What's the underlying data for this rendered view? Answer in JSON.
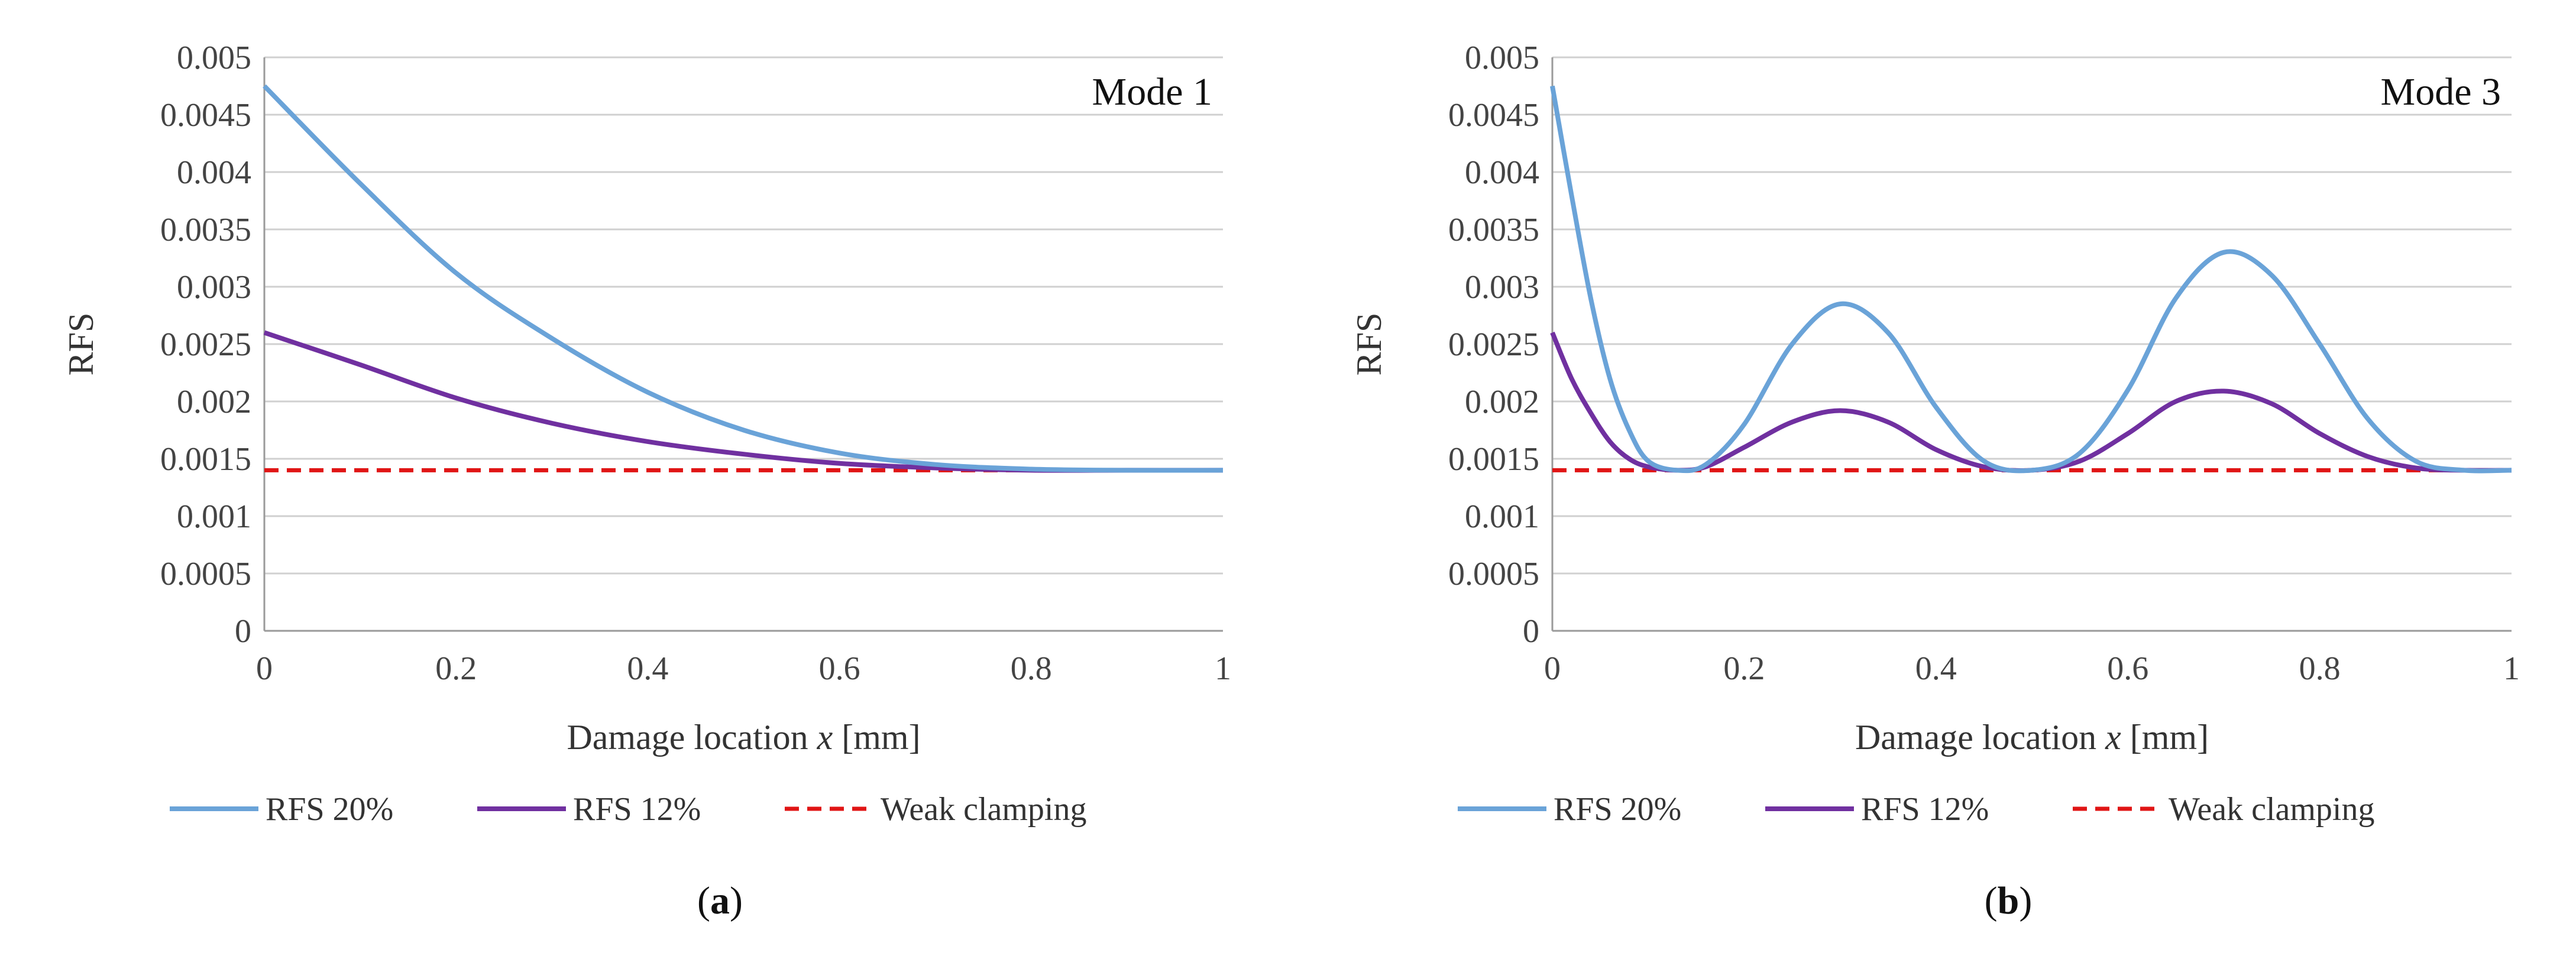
{
  "colors": {
    "rfs20": "#6aa3d8",
    "rfs12": "#7030a0",
    "weak": "#e01515"
  },
  "chart_data": [
    {
      "type": "line",
      "panel_label": "a",
      "annotation": "Mode 1",
      "xlabel_prefix": "Damage location ",
      "xlabel_var": "x",
      "xlabel_unit": " [mm]",
      "ylabel": "RFS",
      "xlim": [
        0,
        1
      ],
      "ylim": [
        0,
        0.005
      ],
      "xticks": [
        "0",
        "0.2",
        "0.4",
        "0.6",
        "0.8",
        "1"
      ],
      "yticks": [
        "0",
        "0.0005",
        "0.001",
        "0.0015",
        "0.002",
        "0.0025",
        "0.003",
        "0.0035",
        "0.004",
        "0.0045",
        "0.005"
      ],
      "legend_position": "bottom",
      "series": [
        {
          "name": "RFS 20%",
          "style": "solid",
          "color": "#6aa3d8",
          "x": [
            0,
            0.1,
            0.2,
            0.3,
            0.4,
            0.5,
            0.6,
            0.7,
            0.8,
            0.9,
            1.0
          ],
          "y": [
            0.00475,
            0.0039,
            0.00312,
            0.00255,
            0.00208,
            0.00175,
            0.00155,
            0.00145,
            0.00141,
            0.0014,
            0.0014
          ]
        },
        {
          "name": "RFS 12%",
          "style": "solid",
          "color": "#7030a0",
          "x": [
            0,
            0.1,
            0.2,
            0.3,
            0.4,
            0.5,
            0.6,
            0.7,
            0.8,
            0.9,
            1.0
          ],
          "y": [
            0.0026,
            0.00232,
            0.00203,
            0.00181,
            0.00165,
            0.00154,
            0.00146,
            0.00142,
            0.0014,
            0.0014,
            0.0014
          ]
        },
        {
          "name": "Weak clamping",
          "style": "dashed",
          "color": "#e01515",
          "x": [
            0,
            1.0
          ],
          "y": [
            0.0014,
            0.0014
          ]
        }
      ]
    },
    {
      "type": "line",
      "panel_label": "b",
      "annotation": "Mode 3",
      "xlabel_prefix": "Damage location ",
      "xlabel_var": "x",
      "xlabel_unit": " [mm]",
      "ylabel": "RFS",
      "xlim": [
        0,
        1
      ],
      "ylim": [
        0,
        0.005
      ],
      "xticks": [
        "0",
        "0.2",
        "0.4",
        "0.6",
        "0.8",
        "1"
      ],
      "yticks": [
        "0",
        "0.0005",
        "0.001",
        "0.0015",
        "0.002",
        "0.0025",
        "0.003",
        "0.0035",
        "0.004",
        "0.0045",
        "0.005"
      ],
      "legend_position": "bottom",
      "series": [
        {
          "name": "RFS 20%",
          "style": "solid",
          "color": "#6aa3d8",
          "x": [
            0,
            0.02,
            0.04,
            0.06,
            0.08,
            0.1,
            0.13,
            0.16,
            0.2,
            0.25,
            0.3,
            0.35,
            0.4,
            0.45,
            0.5,
            0.55,
            0.6,
            0.65,
            0.7,
            0.75,
            0.8,
            0.85,
            0.9,
            0.95,
            1.0
          ],
          "y": [
            0.00475,
            0.0038,
            0.0029,
            0.0022,
            0.00175,
            0.00148,
            0.0014,
            0.00145,
            0.0018,
            0.0025,
            0.00285,
            0.0026,
            0.00195,
            0.00148,
            0.0014,
            0.00155,
            0.0021,
            0.0029,
            0.0033,
            0.0031,
            0.0025,
            0.00185,
            0.00148,
            0.0014,
            0.0014
          ]
        },
        {
          "name": "RFS 12%",
          "style": "solid",
          "color": "#7030a0",
          "x": [
            0,
            0.02,
            0.04,
            0.06,
            0.08,
            0.1,
            0.13,
            0.16,
            0.2,
            0.25,
            0.3,
            0.35,
            0.4,
            0.45,
            0.5,
            0.55,
            0.6,
            0.65,
            0.7,
            0.75,
            0.8,
            0.85,
            0.9,
            0.95,
            1.0
          ],
          "y": [
            0.0026,
            0.0022,
            0.0019,
            0.00165,
            0.0015,
            0.00143,
            0.0014,
            0.00143,
            0.0016,
            0.00182,
            0.00192,
            0.00182,
            0.00158,
            0.00143,
            0.0014,
            0.00148,
            0.00172,
            0.002,
            0.00209,
            0.00198,
            0.00172,
            0.00152,
            0.00142,
            0.0014,
            0.0014
          ]
        },
        {
          "name": "Weak clamping",
          "style": "dashed",
          "color": "#e01515",
          "x": [
            0,
            1.0
          ],
          "y": [
            0.0014,
            0.0014
          ]
        }
      ]
    }
  ]
}
